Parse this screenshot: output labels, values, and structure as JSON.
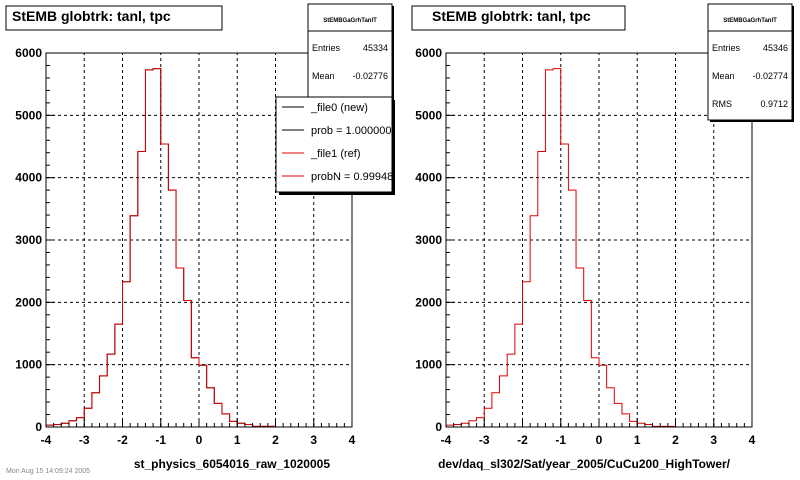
{
  "chart_data": [
    {
      "type": "histogram",
      "title": "StEMB globtrk: tanl, tpc",
      "xlabel": "st_physics_6054016_raw_1020005",
      "xlim": [
        -4,
        4
      ],
      "ylim": [
        0,
        6000
      ],
      "xticks": [
        "-4",
        "-3",
        "-2",
        "-1",
        "0",
        "1",
        "2",
        "3",
        "4"
      ],
      "yticks": [
        "0",
        "1000",
        "2000",
        "3000",
        "4000",
        "5000",
        "6000"
      ],
      "grid": true,
      "bin_width": 0.2,
      "series": [
        {
          "name": "_file0 (new)",
          "color": "#000000",
          "values": [
            30,
            40,
            60,
            100,
            150,
            300,
            550,
            820,
            1170,
            1650,
            2330,
            3390,
            4420,
            5730,
            5750,
            4540,
            3800,
            2550,
            2030,
            1110,
            990,
            630,
            380,
            210,
            90,
            60,
            40,
            10,
            10,
            10
          ]
        },
        {
          "name": "_file1 (ref)",
          "color": "#dd0000",
          "values": [
            30,
            40,
            60,
            100,
            150,
            300,
            550,
            820,
            1170,
            1650,
            2330,
            3390,
            4420,
            5730,
            5750,
            4540,
            3800,
            2550,
            2030,
            1110,
            990,
            630,
            380,
            210,
            90,
            60,
            40,
            10,
            10,
            10
          ]
        }
      ],
      "stats": {
        "name": "StEMBGaGrhTanlT",
        "entries_label": "Entries",
        "entries": "45334",
        "mean_label": "Mean",
        "mean": "-0.02776"
      },
      "legend": {
        "placement": "top-right",
        "entries": [
          "_file0 (new)",
          "prob = 1.000000",
          "_file1 (ref)",
          "probN = 0.99948"
        ]
      }
    },
    {
      "type": "histogram",
      "title": "StEMB globtrk: tanl, tpc",
      "xlabel": "dev/daq_sl302/Sat/year_2005/CuCu200_HighTower/",
      "xlim": [
        -4,
        4
      ],
      "ylim": [
        0,
        6000
      ],
      "xticks": [
        "-4",
        "-3",
        "-2",
        "-1",
        "0",
        "1",
        "2",
        "3",
        "4"
      ],
      "yticks": [
        "0",
        "1000",
        "2000",
        "3000",
        "4000",
        "5000",
        "6000"
      ],
      "grid": true,
      "bin_width": 0.2,
      "series": [
        {
          "name": "",
          "color": "#dd0000",
          "values": [
            30,
            40,
            60,
            100,
            150,
            300,
            550,
            820,
            1170,
            1650,
            2330,
            3390,
            4420,
            5730,
            5750,
            4540,
            3800,
            2550,
            2030,
            1110,
            990,
            630,
            380,
            210,
            90,
            60,
            40,
            10,
            10,
            10
          ]
        }
      ],
      "stats": {
        "name": "StEMBGaGrhTanlT",
        "entries_label": "Entries",
        "entries": "45346",
        "mean_label": "Mean",
        "mean": "-0.02774",
        "rms_label": "RMS",
        "rms": "0.9712"
      }
    }
  ],
  "footer": "Mon Aug 15 14:09:24 2005"
}
